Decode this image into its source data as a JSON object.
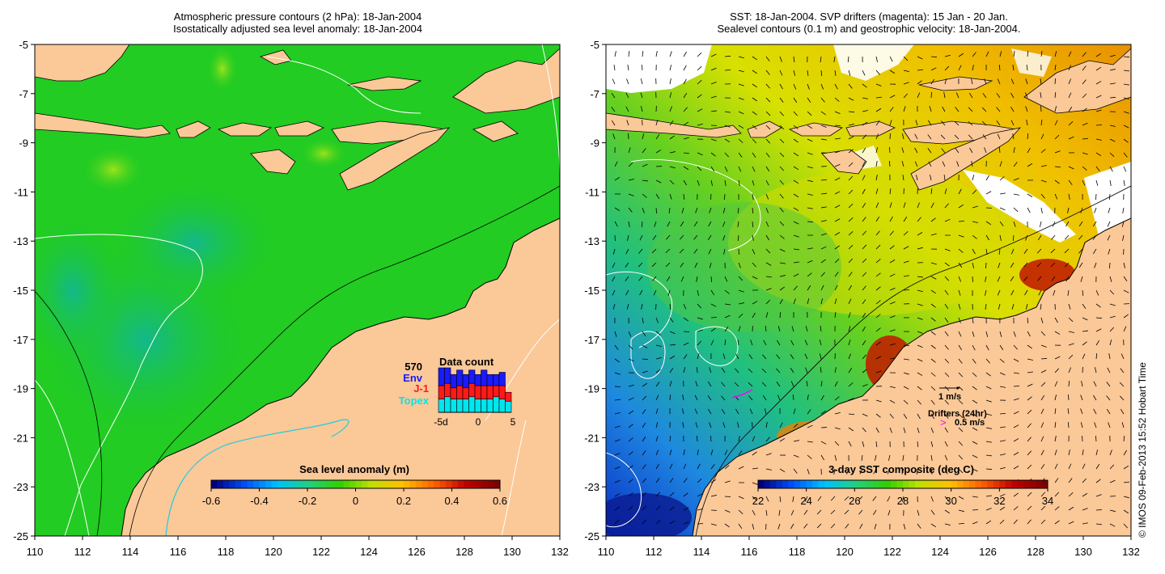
{
  "left_panel": {
    "title_line1": "Atmospheric pressure contours (2 hPa): 18-Jan-2004",
    "title_line2": "Isostatically adjusted sea level anomaly: 18-Jan-2004",
    "y_ticks": [
      "-5",
      "-7",
      "-9",
      "-11",
      "-13",
      "-15",
      "-17",
      "-19",
      "-21",
      "-23",
      "-25"
    ],
    "x_ticks": [
      "110",
      "112",
      "114",
      "116",
      "118",
      "120",
      "122",
      "124",
      "126",
      "128",
      "130",
      "132"
    ],
    "colorbar": {
      "title": "Sea level anomaly (m)",
      "labels": [
        "-0.6",
        "-0.4",
        "-0.2",
        "0",
        "0.2",
        "0.4",
        "0.6"
      ],
      "range": [
        -0.6,
        0.6
      ]
    },
    "data_count": {
      "total": "570",
      "title": "Data count",
      "legend": [
        {
          "label": "Env",
          "color": "#1a1aff"
        },
        {
          "label": "J-1",
          "color": "#ff1a1a"
        },
        {
          "label": "Topex",
          "color": "#00e5ee"
        }
      ],
      "axis_labels": [
        "-5d",
        "0",
        "5"
      ],
      "bars": [
        {
          "topex": 0.3,
          "j1": 0.3,
          "env": 0.4
        },
        {
          "topex": 0.35,
          "j1": 0.3,
          "env": 0.35
        },
        {
          "topex": 0.3,
          "j1": 0.25,
          "env": 0.3
        },
        {
          "topex": 0.3,
          "j1": 0.3,
          "env": 0.35
        },
        {
          "topex": 0.3,
          "j1": 0.25,
          "env": 0.3
        },
        {
          "topex": 0.35,
          "j1": 0.3,
          "env": 0.3
        },
        {
          "topex": 0.3,
          "j1": 0.3,
          "env": 0.25
        },
        {
          "topex": 0.3,
          "j1": 0.3,
          "env": 0.35
        },
        {
          "topex": 0.3,
          "j1": 0.3,
          "env": 0.25
        },
        {
          "topex": 0.35,
          "j1": 0.25,
          "env": 0.25
        },
        {
          "topex": 0.3,
          "j1": 0.3,
          "env": 0.3
        },
        {
          "topex": 0.25,
          "j1": 0.2,
          "env": 0.0
        }
      ]
    }
  },
  "right_panel": {
    "title_line1": "SST: 18-Jan-2004. SVP drifters (magenta): 15 Jan - 20 Jan.",
    "title_line2": "Sealevel contours (0.1 m) and geostrophic velocity: 18-Jan-2004.",
    "y_ticks": [
      "-5",
      "-7",
      "-9",
      "-11",
      "-13",
      "-15",
      "-17",
      "-19",
      "-21",
      "-23",
      "-25"
    ],
    "x_ticks": [
      "110",
      "112",
      "114",
      "116",
      "118",
      "120",
      "122",
      "124",
      "126",
      "128",
      "130",
      "132"
    ],
    "colorbar": {
      "title": "3-day SST composite (deg C)",
      "labels": [
        "22",
        "24",
        "26",
        "28",
        "30",
        "32",
        "34"
      ],
      "range": [
        22,
        34
      ]
    },
    "velocity_scale_label": "1 m/s",
    "drifters_label": "Drifters (24hr)",
    "drifters_scale_label": "0.5 m/s"
  },
  "footer_credit": "© IMOS 09-Feb-2013 15:52 Hobart Time",
  "colors": {
    "land": "#fbc898",
    "ocean_left": "#22cc22",
    "ocean_right_warm": "#e8d800",
    "drifter": "#ff00ff"
  }
}
